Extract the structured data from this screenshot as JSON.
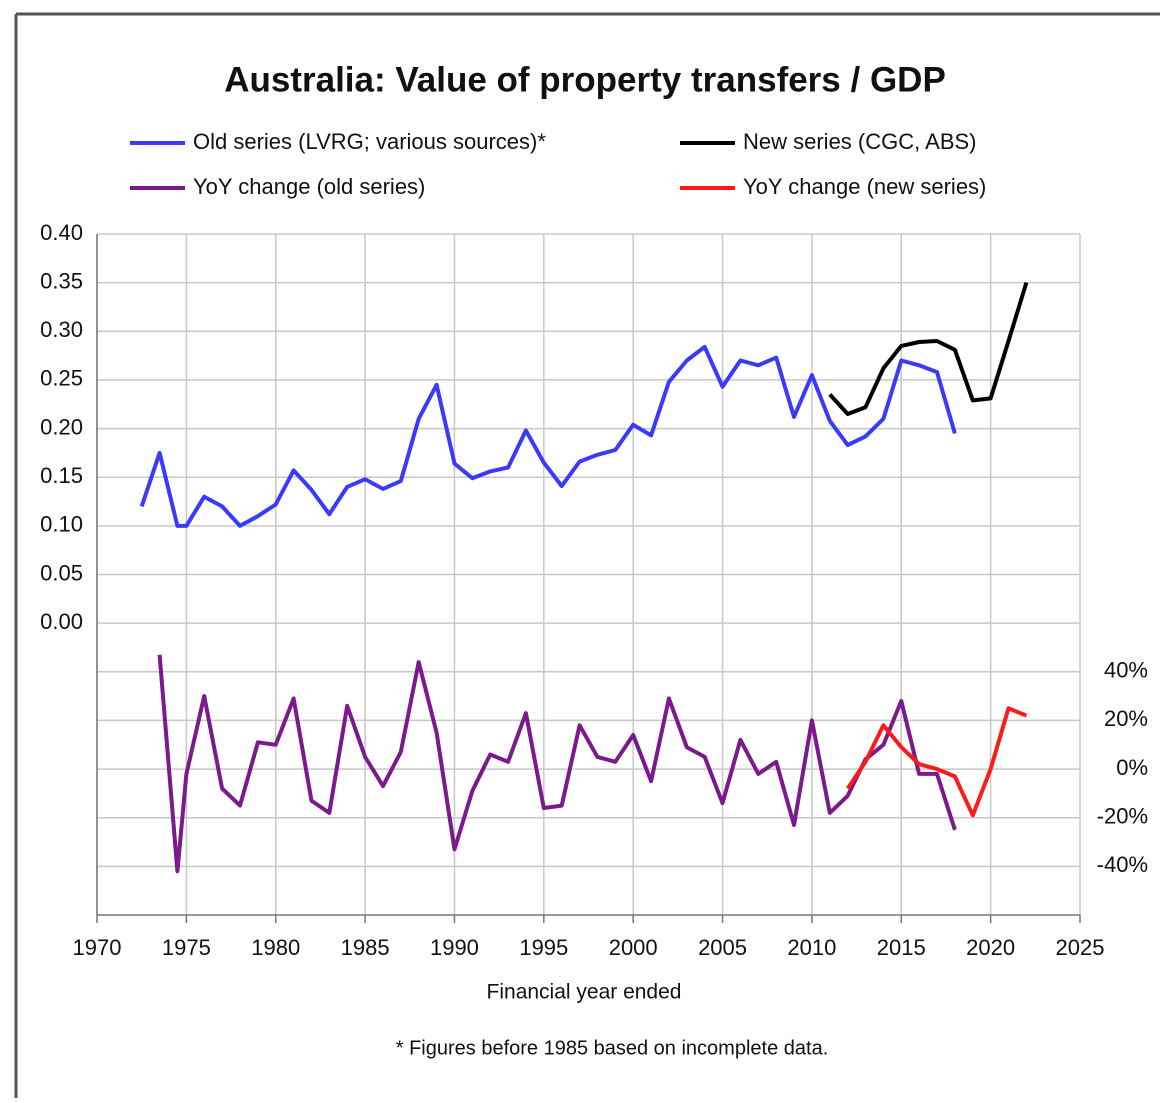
{
  "chart_data": {
    "type": "line",
    "title": "Australia: Value of property transfers / GDP",
    "xlabel": "Financial year ended",
    "footnote": "* Figures before 1985 based on incomplete data.",
    "xlim": [
      1970,
      2025
    ],
    "xticks": [
      1970,
      1975,
      1980,
      1985,
      1990,
      1995,
      2000,
      2005,
      2010,
      2015,
      2020,
      2025
    ],
    "ylim": [
      -0.3,
      0.4
    ],
    "yticks": [
      {
        "value": 0,
        "label": "0.00"
      },
      {
        "value": 0.05,
        "label": "0.05"
      },
      {
        "value": 0.1,
        "label": "0.10"
      },
      {
        "value": 0.15,
        "label": "0.15"
      },
      {
        "value": 0.2,
        "label": "0.20"
      },
      {
        "value": 0.25,
        "label": "0.25"
      },
      {
        "value": 0.3,
        "label": "0.30"
      },
      {
        "value": 0.35,
        "label": "0.35"
      },
      {
        "value": 0.4,
        "label": "0.40"
      }
    ],
    "y2lim": [
      -60,
      220
    ],
    "y2ticks": [
      {
        "value": -40,
        "label": "-40%"
      },
      {
        "value": -20,
        "label": "-20%"
      },
      {
        "value": 0,
        "label": "0%"
      },
      {
        "value": 20,
        "label": "20%"
      },
      {
        "value": 40,
        "label": "40%"
      }
    ],
    "grid": true,
    "series": [
      {
        "name": "Old series (LVRG; various sources)*",
        "color": "#3a3aff",
        "x": [
          1972.5,
          1973.5,
          1974.5,
          1975,
          1976,
          1977,
          1978,
          1979,
          1980,
          1981,
          1982,
          1983,
          1984,
          1985,
          1986,
          1987,
          1988,
          1989,
          1990,
          1991,
          1992,
          1993,
          1994,
          1995,
          1996,
          1997,
          1998,
          1999,
          2000,
          2001,
          2002,
          2003,
          2004,
          2005,
          2006,
          2007,
          2008,
          2009,
          2010,
          2011,
          2012,
          2013,
          2014,
          2015,
          2016,
          2017,
          2018
        ],
        "values": [
          0.12,
          0.175,
          0.1,
          0.1,
          0.13,
          0.12,
          0.1,
          0.11,
          0.122,
          0.157,
          0.137,
          0.112,
          0.14,
          0.148,
          0.138,
          0.146,
          0.21,
          0.245,
          0.164,
          0.149,
          0.156,
          0.16,
          0.198,
          0.165,
          0.141,
          0.166,
          0.173,
          0.178,
          0.204,
          0.193,
          0.248,
          0.27,
          0.284,
          0.243,
          0.27,
          0.265,
          0.273,
          0.212,
          0.255,
          0.208,
          0.183,
          0.192,
          0.21,
          0.27,
          0.265,
          0.258,
          0.195
        ]
      },
      {
        "name": "New series (CGC, ABS)",
        "color": "#000000",
        "x": [
          2011,
          2012,
          2013,
          2014,
          2015,
          2016,
          2017,
          2018,
          2019,
          2020,
          2021,
          2022
        ],
        "values": [
          0.235,
          0.215,
          0.222,
          0.262,
          0.285,
          0.289,
          0.29,
          0.281,
          0.229,
          0.231,
          0.29,
          0.35
        ]
      },
      {
        "name": "YoY change (old series)",
        "color": "#7b1a8c",
        "axis": "y2",
        "x": [
          1973.5,
          1974.5,
          1975,
          1976,
          1977,
          1978,
          1979,
          1980,
          1981,
          1982,
          1983,
          1984,
          1985,
          1986,
          1987,
          1988,
          1989,
          1990,
          1991,
          1992,
          1993,
          1994,
          1995,
          1996,
          1997,
          1998,
          1999,
          2000,
          2001,
          2002,
          2003,
          2004,
          2005,
          2006,
          2007,
          2008,
          2009,
          2010,
          2011,
          2012,
          2013,
          2014,
          2015,
          2016,
          2017,
          2018
        ],
        "values": [
          47,
          -42,
          -2,
          30,
          -8,
          -15,
          11,
          10,
          29,
          -13,
          -18,
          26,
          5,
          -7,
          7,
          44,
          15,
          -33,
          -9,
          6,
          3,
          23,
          -16,
          -15,
          18,
          5,
          3,
          14,
          -5,
          29,
          9,
          5,
          -14,
          12,
          -2,
          3,
          -23,
          20,
          -18,
          -11,
          4,
          10,
          28,
          -2,
          -2,
          -25
        ]
      },
      {
        "name": "YoY change (new series)",
        "color": "#ff1a1a",
        "axis": "y2",
        "x": [
          2012,
          2013,
          2014,
          2015,
          2016,
          2017,
          2018,
          2019,
          2020,
          2021,
          2022
        ],
        "values": [
          -8,
          3,
          18,
          9,
          2,
          0,
          -3,
          -19,
          0,
          25,
          22
        ]
      }
    ]
  }
}
